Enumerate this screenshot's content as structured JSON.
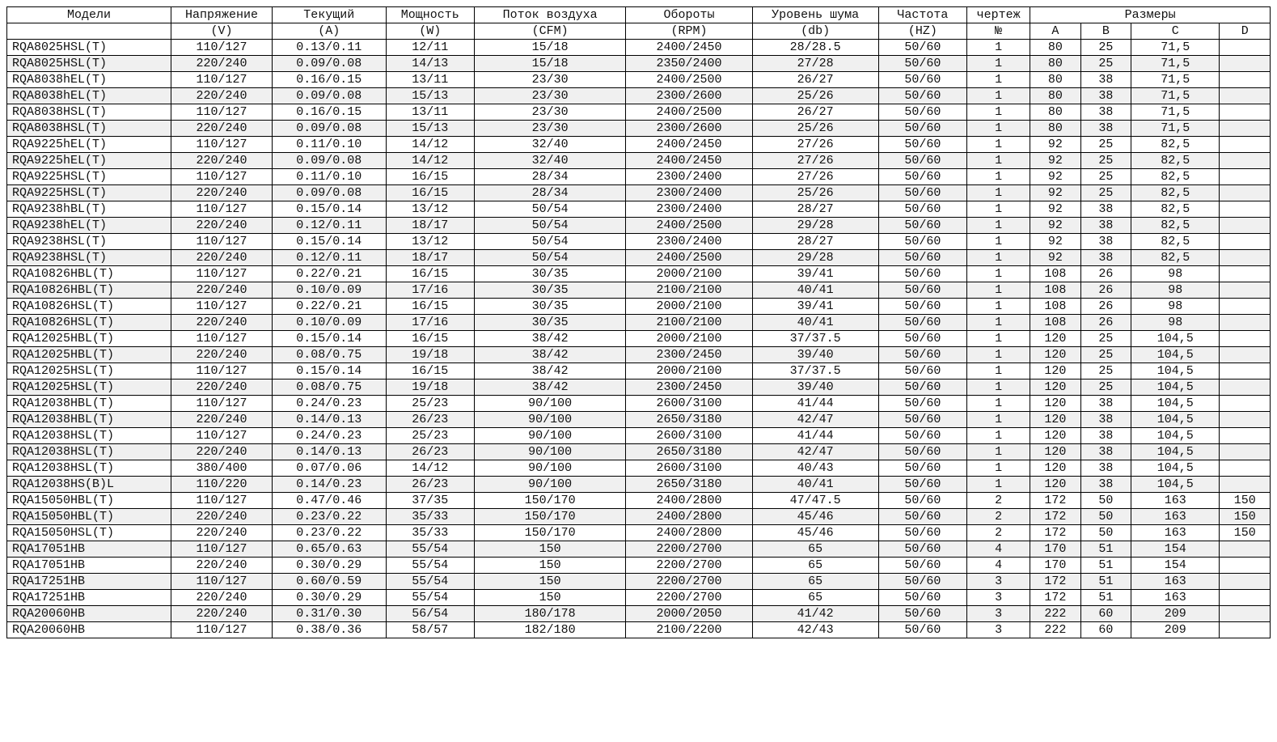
{
  "table": {
    "headers1": [
      "Модели",
      "Напряжение",
      "Текущий",
      "Мощность",
      "Поток воздуха",
      "Обороты",
      "Уровень шума",
      "Частота",
      "чертеж",
      "Размеры"
    ],
    "headers2": [
      "",
      "(V)",
      "(A)",
      "(W)",
      "(CFM)",
      "(RPM)",
      "(db)",
      "(HZ)",
      "№",
      "A",
      "B",
      "C",
      "D"
    ],
    "rows": [
      [
        "RQA8025HSL(T)",
        "110/127",
        "0.13/0.11",
        "12/11",
        "15/18",
        "2400/2450",
        "28/28.5",
        "50/60",
        "1",
        "80",
        "25",
        "71,5",
        ""
      ],
      [
        "RQA8025HSL(T)",
        "220/240",
        "0.09/0.08",
        "14/13",
        "15/18",
        "2350/2400",
        "27/28",
        "50/60",
        "1",
        "80",
        "25",
        "71,5",
        ""
      ],
      [
        "RQA8038hEL(T)",
        "110/127",
        "0.16/0.15",
        "13/11",
        "23/30",
        "2400/2500",
        "26/27",
        "50/60",
        "1",
        "80",
        "38",
        "71,5",
        ""
      ],
      [
        "RQA8038hEL(T)",
        "220/240",
        "0.09/0.08",
        "15/13",
        "23/30",
        "2300/2600",
        "25/26",
        "50/60",
        "1",
        "80",
        "38",
        "71,5",
        ""
      ],
      [
        "RQA8038HSL(T)",
        "110/127",
        "0.16/0.15",
        "13/11",
        "23/30",
        "2400/2500",
        "26/27",
        "50/60",
        "1",
        "80",
        "38",
        "71,5",
        ""
      ],
      [
        "RQA8038HSL(T)",
        "220/240",
        "0.09/0.08",
        "15/13",
        "23/30",
        "2300/2600",
        "25/26",
        "50/60",
        "1",
        "80",
        "38",
        "71,5",
        ""
      ],
      [
        "RQA9225hEL(T)",
        "110/127",
        "0.11/0.10",
        "14/12",
        "32/40",
        "2400/2450",
        "27/26",
        "50/60",
        "1",
        "92",
        "25",
        "82,5",
        ""
      ],
      [
        "RQA9225hEL(T)",
        "220/240",
        "0.09/0.08",
        "14/12",
        "32/40",
        "2400/2450",
        "27/26",
        "50/60",
        "1",
        "92",
        "25",
        "82,5",
        ""
      ],
      [
        "RQA9225HSL(T)",
        "110/127",
        "0.11/0.10",
        "16/15",
        "28/34",
        "2300/2400",
        "27/26",
        "50/60",
        "1",
        "92",
        "25",
        "82,5",
        ""
      ],
      [
        "RQA9225HSL(T)",
        "220/240",
        "0.09/0.08",
        "16/15",
        "28/34",
        "2300/2400",
        "25/26",
        "50/60",
        "1",
        "92",
        "25",
        "82,5",
        ""
      ],
      [
        "RQA9238hBL(T)",
        "110/127",
        "0.15/0.14",
        "13/12",
        "50/54",
        "2300/2400",
        "28/27",
        "50/60",
        "1",
        "92",
        "38",
        "82,5",
        ""
      ],
      [
        "RQA9238hEL(T)",
        "220/240",
        "0.12/0.11",
        "18/17",
        "50/54",
        "2400/2500",
        "29/28",
        "50/60",
        "1",
        "92",
        "38",
        "82,5",
        ""
      ],
      [
        "RQA9238HSL(T)",
        "110/127",
        "0.15/0.14",
        "13/12",
        "50/54",
        "2300/2400",
        "28/27",
        "50/60",
        "1",
        "92",
        "38",
        "82,5",
        ""
      ],
      [
        "RQA9238HSL(T)",
        "220/240",
        "0.12/0.11",
        "18/17",
        "50/54",
        "2400/2500",
        "29/28",
        "50/60",
        "1",
        "92",
        "38",
        "82,5",
        ""
      ],
      [
        "RQA10826HBL(T)",
        "110/127",
        "0.22/0.21",
        "16/15",
        "30/35",
        "2000/2100",
        "39/41",
        "50/60",
        "1",
        "108",
        "26",
        "98",
        ""
      ],
      [
        "RQA10826HBL(T)",
        "220/240",
        "0.10/0.09",
        "17/16",
        "30/35",
        "2100/2100",
        "40/41",
        "50/60",
        "1",
        "108",
        "26",
        "98",
        ""
      ],
      [
        "RQA10826HSL(T)",
        "110/127",
        "0.22/0.21",
        "16/15",
        "30/35",
        "2000/2100",
        "39/41",
        "50/60",
        "1",
        "108",
        "26",
        "98",
        ""
      ],
      [
        "RQA10826HSL(T)",
        "220/240",
        "0.10/0.09",
        "17/16",
        "30/35",
        "2100/2100",
        "40/41",
        "50/60",
        "1",
        "108",
        "26",
        "98",
        ""
      ],
      [
        "RQA12025HBL(T)",
        "110/127",
        "0.15/0.14",
        "16/15",
        "38/42",
        "2000/2100",
        "37/37.5",
        "50/60",
        "1",
        "120",
        "25",
        "104,5",
        ""
      ],
      [
        "RQA12025HBL(T)",
        "220/240",
        "0.08/0.75",
        "19/18",
        "38/42",
        "2300/2450",
        "39/40",
        "50/60",
        "1",
        "120",
        "25",
        "104,5",
        ""
      ],
      [
        "RQA12025HSL(T)",
        "110/127",
        "0.15/0.14",
        "16/15",
        "38/42",
        "2000/2100",
        "37/37.5",
        "50/60",
        "1",
        "120",
        "25",
        "104,5",
        ""
      ],
      [
        "RQA12025HSL(T)",
        "220/240",
        "0.08/0.75",
        "19/18",
        "38/42",
        "2300/2450",
        "39/40",
        "50/60",
        "1",
        "120",
        "25",
        "104,5",
        ""
      ],
      [
        "RQA12038HBL(T)",
        "110/127",
        "0.24/0.23",
        "25/23",
        "90/100",
        "2600/3100",
        "41/44",
        "50/60",
        "1",
        "120",
        "38",
        "104,5",
        ""
      ],
      [
        "RQA12038HBL(T)",
        "220/240",
        "0.14/0.13",
        "26/23",
        "90/100",
        "2650/3180",
        "42/47",
        "50/60",
        "1",
        "120",
        "38",
        "104,5",
        ""
      ],
      [
        "RQA12038HSL(T)",
        "110/127",
        "0.24/0.23",
        "25/23",
        "90/100",
        "2600/3100",
        "41/44",
        "50/60",
        "1",
        "120",
        "38",
        "104,5",
        ""
      ],
      [
        "RQA12038HSL(T)",
        "220/240",
        "0.14/0.13",
        "26/23",
        "90/100",
        "2650/3180",
        "42/47",
        "50/60",
        "1",
        "120",
        "38",
        "104,5",
        ""
      ],
      [
        "RQA12038HSL(T)",
        "380/400",
        "0.07/0.06",
        "14/12",
        "90/100",
        "2600/3100",
        "40/43",
        "50/60",
        "1",
        "120",
        "38",
        "104,5",
        ""
      ],
      [
        "RQA12038HS(B)L",
        "110/220",
        "0.14/0.23",
        "26/23",
        "90/100",
        "2650/3180",
        "40/41",
        "50/60",
        "1",
        "120",
        "38",
        "104,5",
        ""
      ],
      [
        "RQA15050HBL(T)",
        "110/127",
        "0.47/0.46",
        "37/35",
        "150/170",
        "2400/2800",
        "47/47.5",
        "50/60",
        "2",
        "172",
        "50",
        "163",
        "150"
      ],
      [
        "RQA15050HBL(T)",
        "220/240",
        "0.23/0.22",
        "35/33",
        "150/170",
        "2400/2800",
        "45/46",
        "50/60",
        "2",
        "172",
        "50",
        "163",
        "150"
      ],
      [
        "RQA15050HSL(T)",
        "220/240",
        "0.23/0.22",
        "35/33",
        "150/170",
        "2400/2800",
        "45/46",
        "50/60",
        "2",
        "172",
        "50",
        "163",
        "150"
      ],
      [
        "RQA17051HB",
        "110/127",
        "0.65/0.63",
        "55/54",
        "150",
        "2200/2700",
        "65",
        "50/60",
        "4",
        "170",
        "51",
        "154",
        ""
      ],
      [
        "RQA17051HB",
        "220/240",
        "0.30/0.29",
        "55/54",
        "150",
        "2200/2700",
        "65",
        "50/60",
        "4",
        "170",
        "51",
        "154",
        ""
      ],
      [
        "RQA17251HB",
        "110/127",
        "0.60/0.59",
        "55/54",
        "150",
        "2200/2700",
        "65",
        "50/60",
        "3",
        "172",
        "51",
        "163",
        ""
      ],
      [
        "RQA17251HB",
        "220/240",
        "0.30/0.29",
        "55/54",
        "150",
        "2200/2700",
        "65",
        "50/60",
        "3",
        "172",
        "51",
        "163",
        ""
      ],
      [
        "RQA20060HB",
        "220/240",
        "0.31/0.30",
        "56/54",
        "180/178",
        "2000/2050",
        "41/42",
        "50/60",
        "3",
        "222",
        "60",
        "209",
        ""
      ],
      [
        "RQA20060HB",
        "110/127",
        "0.38/0.36",
        "58/57",
        "182/180",
        "2100/2200",
        "42/43",
        "50/60",
        "3",
        "222",
        "60",
        "209",
        ""
      ]
    ]
  }
}
